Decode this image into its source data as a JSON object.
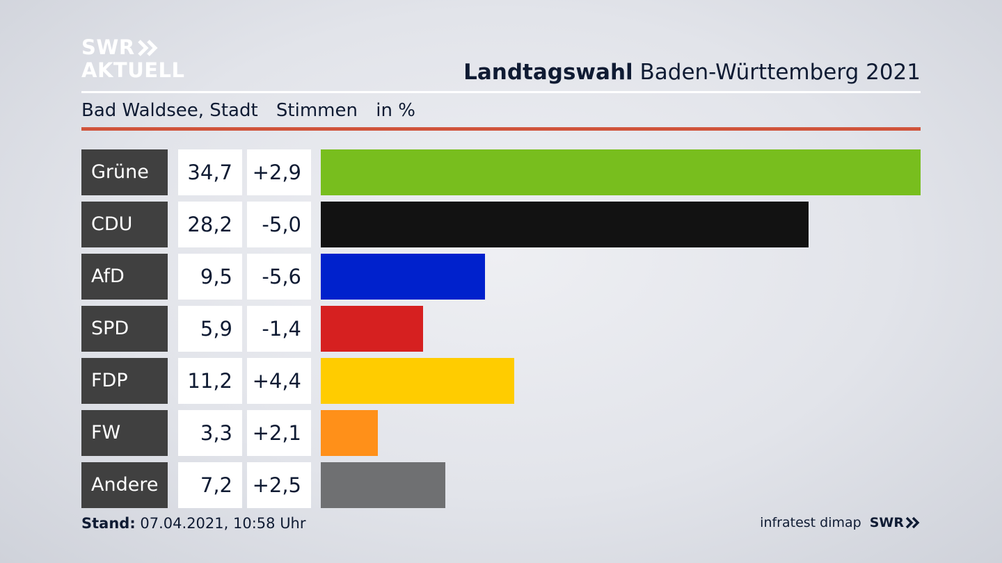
{
  "logo": {
    "line1": "SWR",
    "line2": "AKTUELL"
  },
  "header": {
    "title_bold": "Landtagswahl",
    "title_rest": "Baden-Württemberg 2021"
  },
  "subheader": {
    "place": "Bad Waldsee, Stadt",
    "measure": "Stimmen",
    "unit": "in %"
  },
  "footer": {
    "stand_label": "Stand:",
    "stand_value": "07.04.2021, 10:58 Uhr",
    "source": "infratest dimap",
    "brand": "SWR"
  },
  "colors": {
    "accent_rule": "#d0543b",
    "label_bg": "#404040"
  },
  "chart_data": {
    "type": "bar",
    "orientation": "horizontal",
    "categories": [
      "Grüne",
      "CDU",
      "AfD",
      "SPD",
      "FDP",
      "FW",
      "Andere"
    ],
    "values": [
      34.7,
      28.2,
      9.5,
      5.9,
      11.2,
      3.3,
      7.2
    ],
    "value_labels": [
      "34,7",
      "28,2",
      "9,5",
      "5,9",
      "11,2",
      "3,3",
      "7,2"
    ],
    "changes": [
      2.9,
      -5.0,
      -5.6,
      -1.4,
      4.4,
      2.1,
      2.5
    ],
    "change_labels": [
      "+2,9",
      "-5,0",
      "-5,6",
      "-1,4",
      "+4,4",
      "+2,1",
      "+2,5"
    ],
    "colors": [
      "#78be1e",
      "#121212",
      "#0021cc",
      "#d62020",
      "#ffcc00",
      "#ff9019",
      "#6f7072"
    ],
    "xlim": [
      0,
      34.7
    ]
  }
}
